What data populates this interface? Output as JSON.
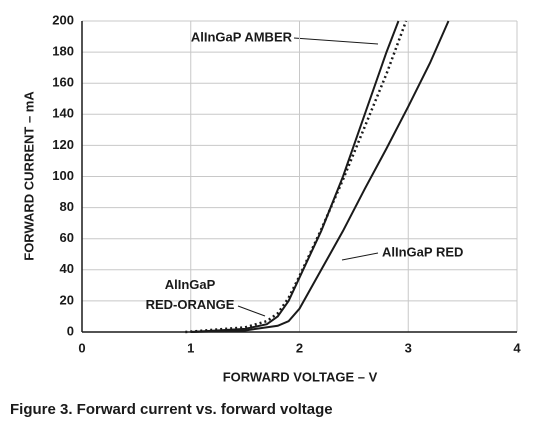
{
  "chart_data": {
    "type": "line",
    "caption": "Figure 3. Forward current vs. forward voltage",
    "x_label": "FORWARD VOLTAGE – V",
    "y_label": "FORWARD CURRENT – mA",
    "xlim": [
      0,
      4
    ],
    "xticks": [
      0,
      1,
      2,
      3,
      4
    ],
    "ylim": [
      0,
      200
    ],
    "yticks": [
      0,
      20,
      40,
      60,
      80,
      100,
      120,
      140,
      160,
      180,
      200
    ],
    "grid": true,
    "series": [
      {
        "name": "AlInGaP AMBER",
        "color": "#1a1a1a",
        "style": "solid",
        "x": [
          1.0,
          1.5,
          1.7,
          1.8,
          1.9,
          2.0,
          2.2,
          2.4,
          2.6,
          2.8,
          2.91
        ],
        "values": [
          0,
          2,
          5,
          10,
          20,
          35,
          65,
          100,
          140,
          180,
          200
        ]
      },
      {
        "name": "AlInGaP RED-ORANGE",
        "color": "#1a1a1a",
        "style": "dotted",
        "x": [
          0.95,
          1.5,
          1.7,
          1.8,
          1.9,
          2.0,
          2.2,
          2.4,
          2.6,
          2.8,
          2.98
        ],
        "values": [
          0,
          3,
          7,
          12,
          22,
          36,
          66,
          98,
          132,
          166,
          200
        ]
      },
      {
        "name": "AlInGaP RED",
        "color": "#1a1a1a",
        "style": "solid",
        "x": [
          1.0,
          1.5,
          1.8,
          1.9,
          2.0,
          2.2,
          2.4,
          2.6,
          2.8,
          3.0,
          3.2,
          3.37
        ],
        "values": [
          0,
          1,
          4,
          7,
          15,
          40,
          65,
          92,
          118,
          145,
          173,
          200
        ]
      }
    ]
  }
}
